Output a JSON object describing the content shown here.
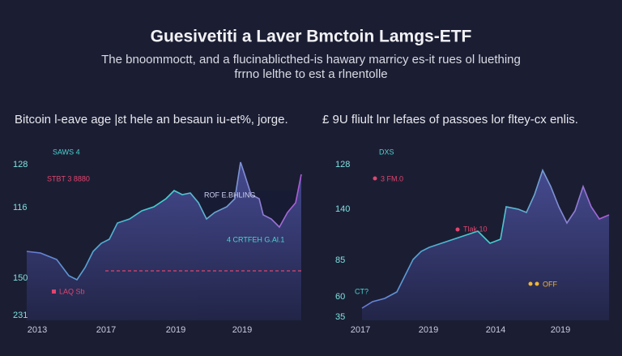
{
  "header": {
    "title": "Guesivetiti a Laver Bmctoin Lamgs-ETF",
    "subtitle": [
      "The bnoommoctt, and a flucinablicthed-is hawary marricy es-it rues ol luething",
      "frrno lelthe to est a rlnentolle"
    ]
  },
  "panels": [
    {
      "title": "Bitcoin l-eave age |ɛt hele an besaun iu-et%, jorge.",
      "y_labels": [
        "128",
        "116",
        "150",
        "231"
      ],
      "x_labels": [
        "2013",
        "2017",
        "2019",
        "2019"
      ],
      "annotations": [
        "SAWS 4",
        "STBT 3 8880",
        "ROF E.BHLING",
        "4 CRTFEH G.Al.1",
        "LAQ Sb"
      ]
    },
    {
      "title": "£ 9U fliult lnr lefaes of passoes lor fltey-cx enlis.",
      "y_labels": [
        "128",
        "140",
        "85",
        "60",
        "35"
      ],
      "x_labels": [
        "2017",
        "2019",
        "2014",
        "2019"
      ],
      "annotations": [
        "DXS",
        "3 FM.0",
        "Tlak 10",
        "OFF",
        "CT?"
      ]
    }
  ]
}
